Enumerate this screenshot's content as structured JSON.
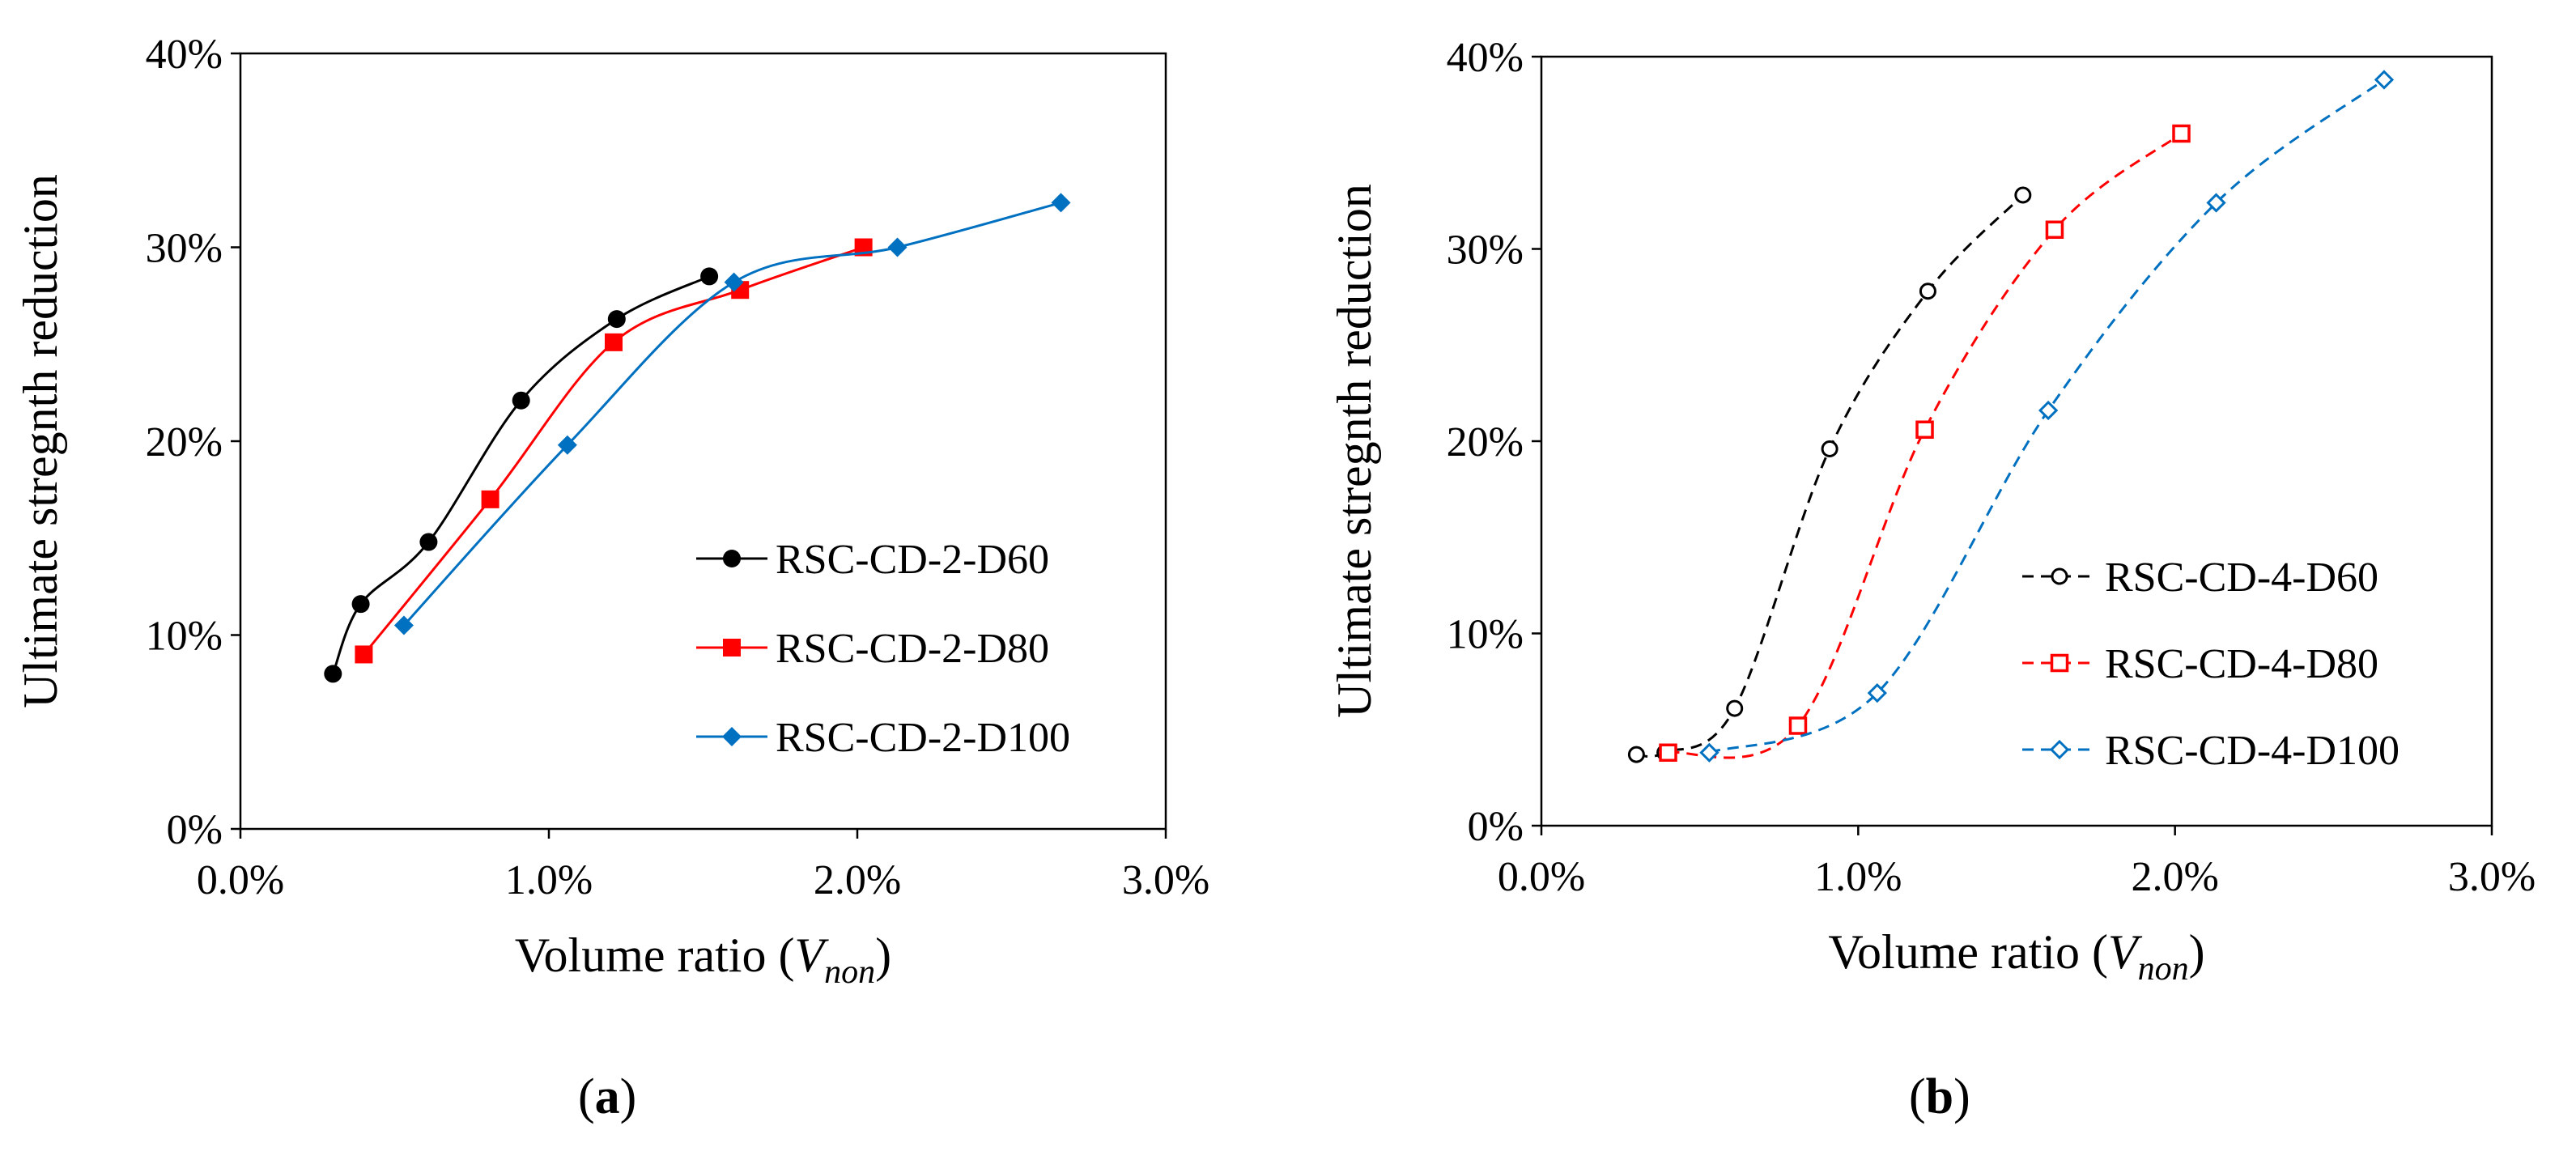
{
  "chart_data": [
    {
      "type": "line",
      "panel": "a",
      "panel_label": "a",
      "xlabel_main": "Volume ratio (",
      "xlabel_var": "V",
      "xlabel_sub": "non",
      "xlabel_close": ")",
      "ylabel": "Ultimate stregnth reduction",
      "xlim": [
        0,
        0.03
      ],
      "ylim": [
        0,
        0.4
      ],
      "x_ticks": [
        0,
        0.01,
        0.02,
        0.03
      ],
      "x_tick_labels": [
        "0.0%",
        "1.0%",
        "2.0%",
        "3.0%"
      ],
      "y_ticks": [
        0,
        0.1,
        0.2,
        0.3,
        0.4
      ],
      "y_tick_labels": [
        "0%",
        "10%",
        "20%",
        "30%",
        "40%"
      ],
      "legend_position": "right-middle",
      "series": [
        {
          "name": "RSC-CD-2-D60",
          "color": "#000000",
          "marker": "circle-filled",
          "dashed": false,
          "x": [
            0.003,
            0.0039,
            0.0061,
            0.0091,
            0.0122,
            0.0152
          ],
          "y": [
            0.08,
            0.116,
            0.148,
            0.221,
            0.263,
            0.285
          ]
        },
        {
          "name": "RSC-CD-2-D80",
          "color": "#ff0000",
          "marker": "square-filled",
          "dashed": false,
          "x": [
            0.004,
            0.0081,
            0.0121,
            0.0162,
            0.0202
          ],
          "y": [
            0.09,
            0.17,
            0.251,
            0.278,
            0.3
          ]
        },
        {
          "name": "RSC-CD-2-D100",
          "color": "#0070c0",
          "marker": "diamond-filled",
          "dashed": false,
          "x": [
            0.0053,
            0.0106,
            0.016,
            0.0213,
            0.0266
          ],
          "y": [
            0.105,
            0.198,
            0.282,
            0.3,
            0.323
          ]
        }
      ]
    },
    {
      "type": "line",
      "panel": "b",
      "panel_label": "b",
      "xlabel_main": "Volume ratio (",
      "xlabel_var": "V",
      "xlabel_sub": "non",
      "xlabel_close": ")",
      "ylabel": "Ultimate stregnth reduction",
      "xlim": [
        0,
        0.03
      ],
      "ylim": [
        0,
        0.4
      ],
      "x_ticks": [
        0,
        0.01,
        0.02,
        0.03
      ],
      "x_tick_labels": [
        "0.0%",
        "1.0%",
        "2.0%",
        "3.0%"
      ],
      "y_ticks": [
        0,
        0.1,
        0.2,
        0.3,
        0.4
      ],
      "y_tick_labels": [
        "0%",
        "10%",
        "20%",
        "30%",
        "40%"
      ],
      "legend_position": "right-lower",
      "series": [
        {
          "name": "RSC-CD-4-D60",
          "color": "#000000",
          "marker": "circle-open",
          "dashed": true,
          "x": [
            0.003,
            0.0039,
            0.0061,
            0.0091,
            0.0122,
            0.0152
          ],
          "y": [
            0.037,
            0.038,
            0.061,
            0.196,
            0.278,
            0.328
          ]
        },
        {
          "name": "RSC-CD-4-D80",
          "color": "#ff0000",
          "marker": "square-open",
          "dashed": true,
          "x": [
            0.004,
            0.0081,
            0.0121,
            0.0162,
            0.0202
          ],
          "y": [
            0.038,
            0.052,
            0.206,
            0.31,
            0.36
          ]
        },
        {
          "name": "RSC-CD-4-D100",
          "color": "#0070c0",
          "marker": "diamond-open",
          "dashed": true,
          "x": [
            0.0053,
            0.0106,
            0.016,
            0.0213,
            0.0266
          ],
          "y": [
            0.038,
            0.069,
            0.216,
            0.324,
            0.388
          ]
        }
      ]
    }
  ]
}
